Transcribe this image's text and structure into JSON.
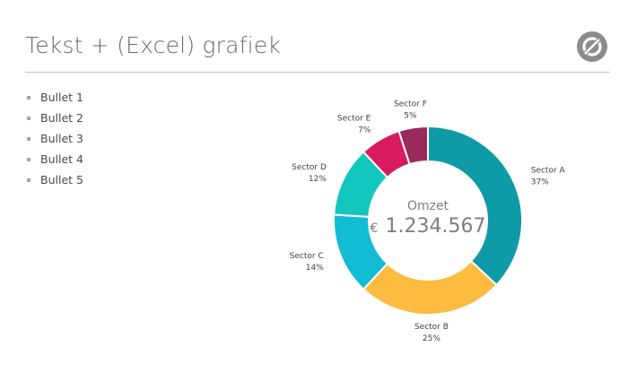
{
  "slide": {
    "title": "Tekst + (Excel) grafiek",
    "logo_icon": "circle-slash-logo-icon"
  },
  "bullets": [
    {
      "label": "Bullet 1"
    },
    {
      "label": "Bullet 2"
    },
    {
      "label": "Bullet 3"
    },
    {
      "label": "Bullet 4"
    },
    {
      "label": "Bullet 5"
    }
  ],
  "chart_data": {
    "type": "pie",
    "variant": "donut",
    "center_title": "Omzet",
    "center_currency": "€",
    "center_value": "1.234.567",
    "series": [
      {
        "name": "Sector A",
        "value": 37,
        "label": "37%",
        "color": "#0E9AA7"
      },
      {
        "name": "Sector B",
        "value": 25,
        "label": "25%",
        "color": "#FDBB40"
      },
      {
        "name": "Sector C",
        "value": 14,
        "label": "14%",
        "color": "#12BCD4"
      },
      {
        "name": "Sector D",
        "value": 12,
        "label": "12%",
        "color": "#13C6BE"
      },
      {
        "name": "Sector E",
        "value": 7,
        "label": "7%",
        "color": "#D81B60"
      },
      {
        "name": "Sector F",
        "value": 5,
        "label": "5%",
        "color": "#992A5B"
      }
    ]
  }
}
